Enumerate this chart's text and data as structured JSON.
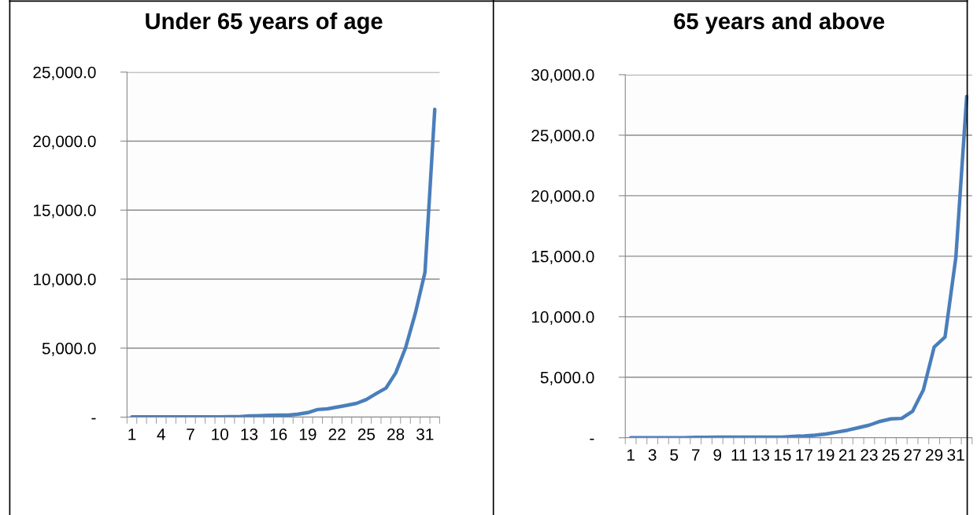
{
  "chart_data": [
    {
      "type": "line",
      "title": "Under 65 years of age",
      "categories": [
        "1",
        null,
        null,
        "4",
        null,
        null,
        "7",
        null,
        null,
        "10",
        null,
        null,
        "13",
        null,
        null,
        "16",
        null,
        null,
        "19",
        null,
        null,
        "22",
        null,
        null,
        "25",
        null,
        null,
        "28",
        null,
        null,
        "31",
        null
      ],
      "series": [
        {
          "color": "#4a7ebb",
          "values": [
            20,
            20,
            20,
            20,
            20,
            20,
            20,
            20,
            20,
            20,
            30,
            40,
            90,
            110,
            130,
            150,
            150,
            220,
            330,
            550,
            600,
            730,
            860,
            1000,
            1280,
            1700,
            2100,
            3200,
            5000,
            7500,
            10500,
            22300
          ]
        }
      ],
      "ylim": [
        0,
        25000
      ],
      "yticks": [
        {
          "value": 0,
          "label": "-"
        },
        {
          "value": 5000,
          "label": "5,000.0"
        },
        {
          "value": 10000,
          "label": "10,000.0"
        },
        {
          "value": 15000,
          "label": "15,000.0"
        },
        {
          "value": 20000,
          "label": "20,000.0"
        },
        {
          "value": 25000,
          "label": "25,000.0"
        }
      ],
      "grid": "y",
      "legend": false,
      "marker": "none",
      "line_style": "solid"
    },
    {
      "type": "line",
      "title": "65 years and above",
      "categories": [
        "1",
        null,
        "3",
        null,
        "5",
        null,
        "7",
        null,
        "9",
        null,
        "11",
        null,
        "13",
        null,
        "15",
        null,
        "17",
        null,
        "19",
        null,
        "21",
        null,
        "23",
        null,
        "25",
        null,
        "27",
        null,
        "29",
        null,
        "31",
        null
      ],
      "series": [
        {
          "color": "#4a7ebb",
          "values": [
            0,
            0,
            0,
            0,
            0,
            0,
            40,
            40,
            50,
            50,
            50,
            50,
            50,
            50,
            50,
            120,
            150,
            210,
            310,
            460,
            620,
            830,
            1040,
            1350,
            1560,
            1600,
            2180,
            3950,
            7500,
            8320,
            14900,
            28200
          ]
        }
      ],
      "ylim": [
        0,
        30000
      ],
      "yticks": [
        {
          "value": 0,
          "label": "-"
        },
        {
          "value": 5000,
          "label": "5,000.0"
        },
        {
          "value": 10000,
          "label": "10,000.0"
        },
        {
          "value": 15000,
          "label": "15,000.0"
        },
        {
          "value": 20000,
          "label": "20,000.0"
        },
        {
          "value": 25000,
          "label": "25,000.0"
        },
        {
          "value": 30000,
          "label": "30,000.0"
        }
      ],
      "grid": "y",
      "legend": false,
      "marker": "none",
      "line_style": "solid"
    }
  ]
}
